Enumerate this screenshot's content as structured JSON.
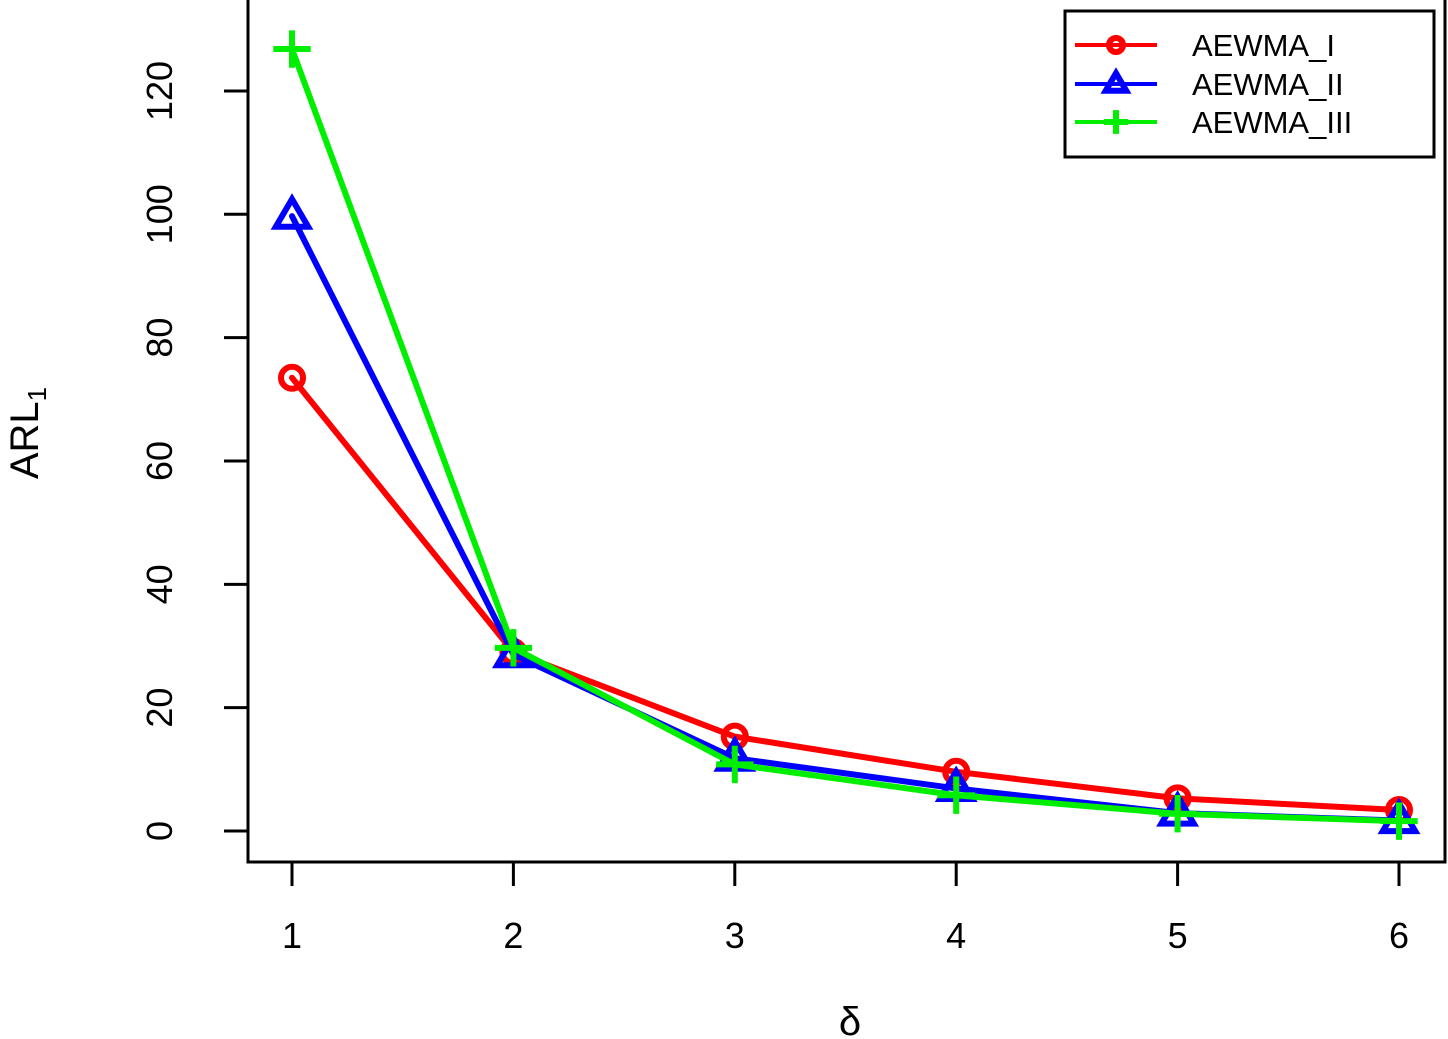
{
  "chart_data": {
    "type": "line",
    "title": "",
    "xlabel": "δ",
    "ylabel": "ARL",
    "ylabel_subscript": "1",
    "x": [
      1,
      2,
      3,
      4,
      5,
      6
    ],
    "x_ticks": [
      "1",
      "2",
      "3",
      "4",
      "5",
      "6"
    ],
    "y_ticks": [
      "0",
      "20",
      "40",
      "60",
      "80",
      "100",
      "120"
    ],
    "xlim": [
      1,
      6
    ],
    "ylim": [
      0,
      127
    ],
    "grid": false,
    "legend_position": "top-right",
    "series": [
      {
        "name": "AEWMA_I",
        "color": "#ff0000",
        "marker": "circle",
        "values": [
          73.5,
          29,
          15.3,
          9.6,
          5.3,
          3.4
        ]
      },
      {
        "name": "AEWMA_II",
        "color": "#0000ff",
        "marker": "triangle",
        "values": [
          99.7,
          28.6,
          11.8,
          6.9,
          2.9,
          1.7
        ]
      },
      {
        "name": "AEWMA_III",
        "color": "#00ee00",
        "marker": "plus",
        "values": [
          126.8,
          29.7,
          10.8,
          5.8,
          2.8,
          1.6
        ]
      }
    ]
  }
}
